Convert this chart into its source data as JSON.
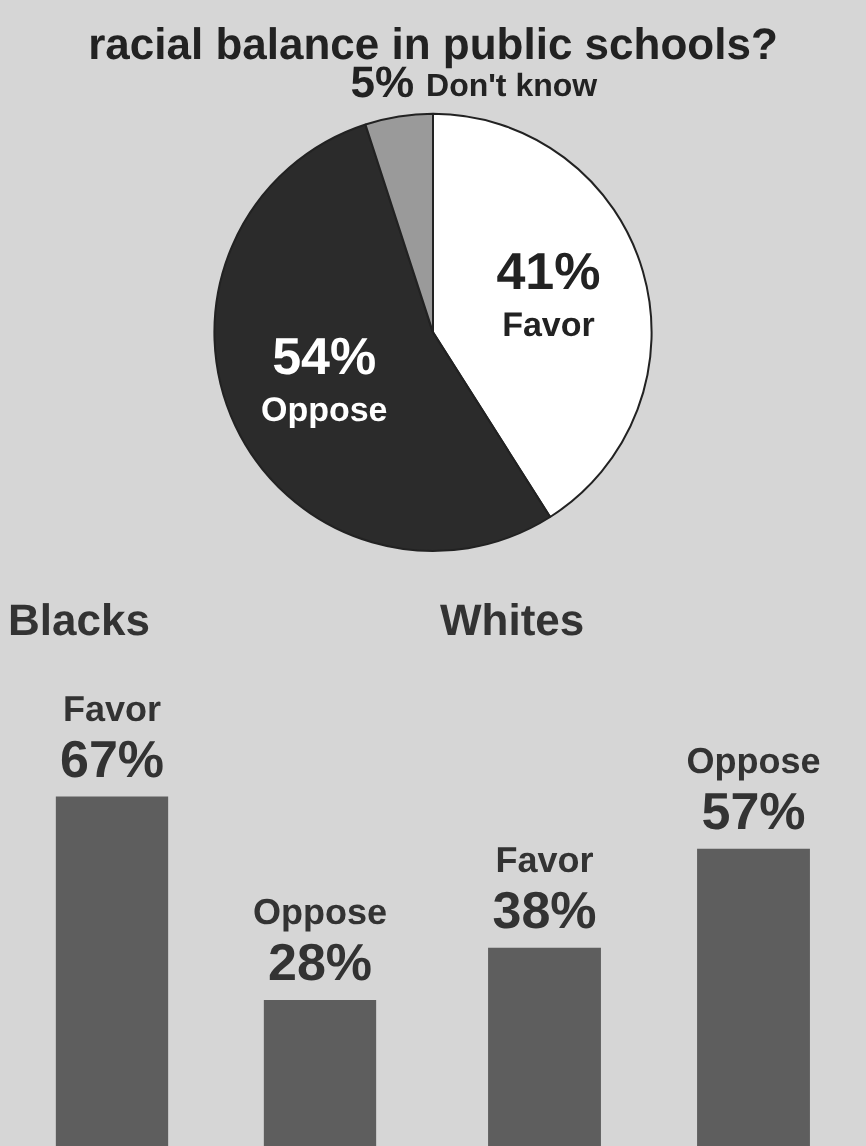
{
  "chart_data": [
    {
      "type": "pie",
      "title": "racial balance in public schools?",
      "categories": [
        "Favor",
        "Oppose",
        "Don't know"
      ],
      "values": [
        41,
        54,
        5
      ],
      "colors": [
        "#ffffff",
        "#2b2b2b",
        "#9a9a9a"
      ],
      "value_labels": [
        "41%",
        "54%",
        "5%"
      ]
    },
    {
      "type": "bar",
      "title": "Blacks",
      "categories": [
        "Favor",
        "Oppose"
      ],
      "values": [
        67,
        28
      ],
      "color": "#5e5e5e",
      "value_labels": [
        "67%",
        "28%"
      ],
      "tick_labels": false
    },
    {
      "type": "bar",
      "title": "Whites",
      "categories": [
        "Favor",
        "Oppose"
      ],
      "values": [
        38,
        57
      ],
      "color": "#5e5e5e",
      "value_labels": [
        "38%",
        "57%"
      ],
      "tick_labels": false
    }
  ]
}
